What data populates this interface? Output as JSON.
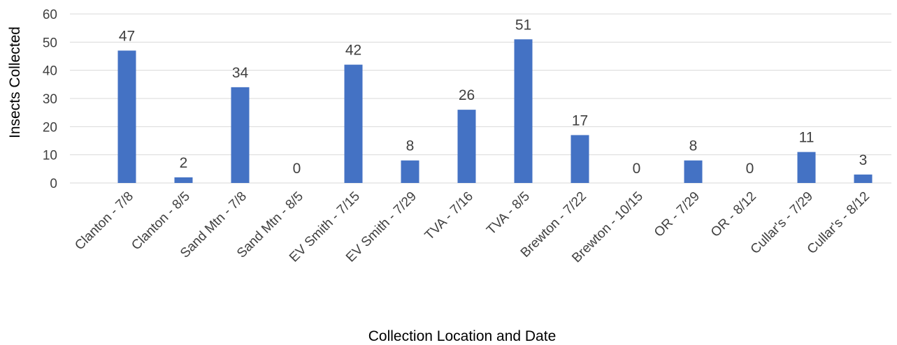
{
  "chart_data": {
    "type": "bar",
    "categories": [
      "Clanton - 7/8",
      "Clanton - 8/5",
      "Sand Mtn - 7/8",
      "Sand Mtn - 8/5",
      "EV Smith - 7/15",
      "EV Smith - 7/29",
      "TVA - 7/16",
      "TVA - 8/5",
      "Brewton - 7/22",
      "Brewton - 10/15",
      "OR - 7/29",
      "OR - 8/12",
      "Cullar's - 7/29",
      "Cullar's - 8/12"
    ],
    "values": [
      47,
      2,
      34,
      0,
      42,
      8,
      26,
      51,
      17,
      0,
      8,
      0,
      11,
      3
    ],
    "data_labels": [
      "47",
      "2",
      "34",
      "0",
      "42",
      "8",
      "26",
      "51",
      "17",
      "0",
      "8",
      "0",
      "11",
      "3"
    ],
    "title": "",
    "xlabel": "Collection Location and Date",
    "ylabel": "Insects Collected",
    "ylim": [
      0,
      60
    ],
    "yticks": [
      0,
      10,
      20,
      30,
      40,
      50,
      60
    ],
    "grid": true,
    "bar_color": "#4472c4",
    "legend": "none"
  }
}
